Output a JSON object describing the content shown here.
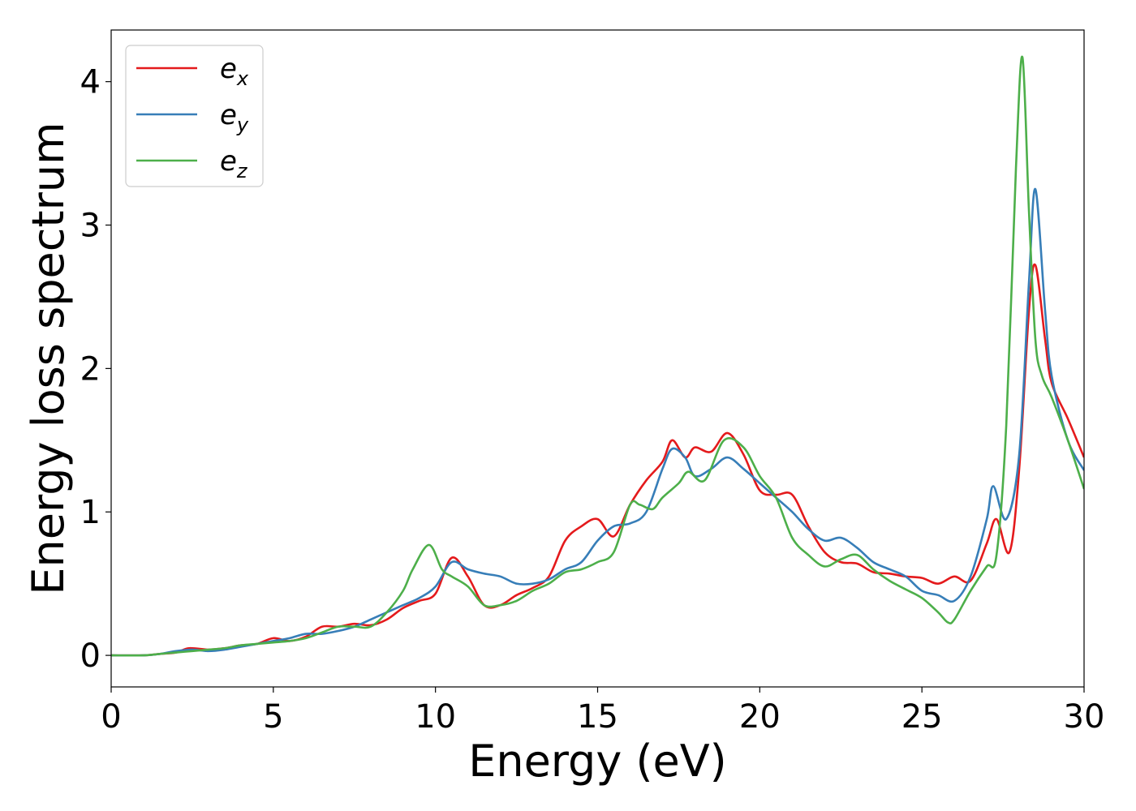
{
  "chart_data": {
    "type": "line",
    "title": "",
    "xlabel": "Energy (eV)",
    "ylabel": "Energy loss spectrum",
    "xlim": [
      0,
      30
    ],
    "ylim": [
      -0.22,
      4.36
    ],
    "xticks": [
      0,
      5,
      10,
      15,
      20,
      25,
      30
    ],
    "yticks": [
      0,
      1,
      2,
      3,
      4
    ],
    "grid": false,
    "legend_position": "top-left",
    "series": [
      {
        "name": "x",
        "legend_base": "e",
        "color": "#e41a1c",
        "x": [
          0,
          1,
          1.5,
          2,
          2.4,
          3,
          3.5,
          4,
          4.5,
          5,
          5.5,
          6,
          6.5,
          7,
          7.5,
          8,
          8.5,
          9,
          9.5,
          10,
          10.5,
          11,
          11.5,
          12,
          12.5,
          13,
          13.5,
          14,
          14.5,
          15,
          15.5,
          16,
          16.5,
          17,
          17.3,
          17.7,
          18,
          18.5,
          19,
          19.5,
          20,
          20.5,
          21,
          21.5,
          22,
          22.5,
          23,
          23.5,
          24,
          24.5,
          25,
          25.5,
          26,
          26.5,
          27,
          27.3,
          27.7,
          28,
          28.3,
          28.5,
          28.8,
          29,
          29.5,
          30
        ],
        "y": [
          0,
          0,
          0.01,
          0.02,
          0.05,
          0.04,
          0.05,
          0.07,
          0.08,
          0.12,
          0.1,
          0.13,
          0.2,
          0.2,
          0.22,
          0.21,
          0.25,
          0.33,
          0.38,
          0.43,
          0.68,
          0.55,
          0.35,
          0.35,
          0.42,
          0.47,
          0.55,
          0.8,
          0.9,
          0.95,
          0.83,
          1.05,
          1.22,
          1.35,
          1.5,
          1.38,
          1.45,
          1.42,
          1.55,
          1.4,
          1.15,
          1.12,
          1.12,
          0.9,
          0.72,
          0.65,
          0.64,
          0.58,
          0.57,
          0.55,
          0.54,
          0.5,
          0.55,
          0.52,
          0.78,
          0.95,
          0.72,
          1.3,
          2.4,
          2.72,
          2.2,
          1.9,
          1.65,
          1.38
        ]
      },
      {
        "name": "y",
        "legend_base": "e",
        "color": "#377eb8",
        "x": [
          0,
          1,
          1.5,
          2,
          2.5,
          3,
          3.5,
          4,
          4.5,
          5,
          5.5,
          6,
          6.5,
          7,
          7.5,
          8,
          8.5,
          9,
          9.5,
          10,
          10.5,
          11,
          11.5,
          12,
          12.5,
          13,
          13.5,
          14,
          14.5,
          15,
          15.5,
          16,
          16.5,
          17,
          17.3,
          17.7,
          18,
          18.5,
          19,
          19.5,
          20,
          20.5,
          21,
          21.5,
          22,
          22.5,
          23,
          23.5,
          24,
          24.5,
          25,
          25.5,
          26,
          26.5,
          27,
          27.2,
          27.6,
          28,
          28.3,
          28.5,
          28.8,
          29,
          29.5,
          30
        ],
        "y": [
          0,
          0,
          0.01,
          0.03,
          0.04,
          0.03,
          0.04,
          0.06,
          0.08,
          0.1,
          0.12,
          0.15,
          0.15,
          0.17,
          0.2,
          0.25,
          0.3,
          0.35,
          0.4,
          0.48,
          0.65,
          0.6,
          0.57,
          0.55,
          0.5,
          0.5,
          0.53,
          0.6,
          0.65,
          0.8,
          0.9,
          0.92,
          1.0,
          1.3,
          1.44,
          1.38,
          1.25,
          1.3,
          1.38,
          1.3,
          1.2,
          1.1,
          1.0,
          0.88,
          0.8,
          0.82,
          0.75,
          0.65,
          0.6,
          0.55,
          0.45,
          0.42,
          0.38,
          0.55,
          0.95,
          1.18,
          0.95,
          1.4,
          2.6,
          3.25,
          2.4,
          1.95,
          1.5,
          1.29
        ]
      },
      {
        "name": "z",
        "legend_base": "e",
        "color": "#4daf4a",
        "x": [
          0,
          1,
          1.5,
          2,
          2.5,
          3,
          3.5,
          4,
          4.5,
          5,
          5.5,
          6,
          6.5,
          7,
          7.5,
          8,
          8.5,
          9,
          9.3,
          9.8,
          10.2,
          10.5,
          11,
          11.5,
          12,
          12.5,
          13,
          13.5,
          14,
          14.5,
          15,
          15.5,
          16,
          16.3,
          16.7,
          17,
          17.5,
          17.8,
          18.3,
          18.9,
          19.5,
          20,
          20.5,
          21,
          21.5,
          22,
          22.5,
          23,
          23.5,
          24,
          24.5,
          25,
          25.5,
          25.8,
          26,
          26.5,
          27,
          27.3,
          27.6,
          27.9,
          28.1,
          28.3,
          28.5,
          28.7,
          29,
          29.5,
          30
        ],
        "y": [
          0,
          0,
          0.01,
          0.02,
          0.03,
          0.04,
          0.05,
          0.07,
          0.08,
          0.09,
          0.1,
          0.12,
          0.16,
          0.2,
          0.2,
          0.2,
          0.3,
          0.45,
          0.6,
          0.77,
          0.6,
          0.55,
          0.48,
          0.35,
          0.35,
          0.38,
          0.45,
          0.5,
          0.58,
          0.6,
          0.65,
          0.72,
          1.05,
          1.05,
          1.02,
          1.1,
          1.2,
          1.28,
          1.22,
          1.5,
          1.45,
          1.25,
          1.1,
          0.82,
          0.7,
          0.62,
          0.67,
          0.7,
          0.6,
          0.52,
          0.46,
          0.4,
          0.3,
          0.23,
          0.25,
          0.45,
          0.62,
          0.7,
          1.6,
          3.4,
          4.17,
          3.1,
          2.2,
          1.95,
          1.8,
          1.5,
          1.16
        ]
      }
    ]
  }
}
